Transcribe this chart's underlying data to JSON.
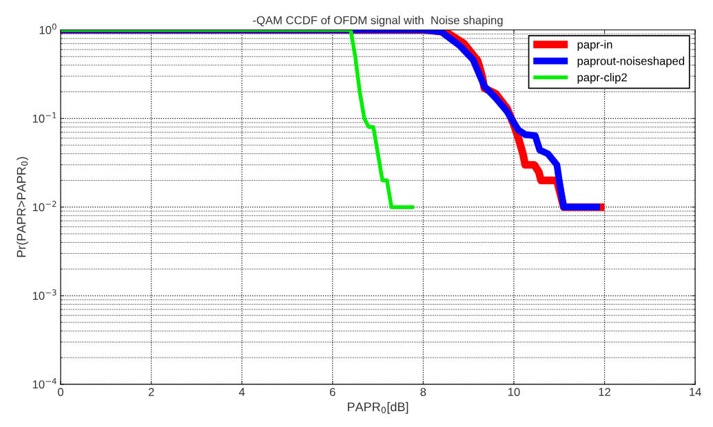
{
  "chart_data": {
    "type": "line",
    "title": "-QAM CCDF of OFDM signal with  Noise shaping",
    "xlabel": "PAPR$_{0}$[dB]",
    "ylabel": "Pr(PAPR>PAPR$_{0}$)",
    "log": "y",
    "grid": true,
    "legend": "top right",
    "marker": "none",
    "line_style": "solid",
    "xlim": [
      0,
      14
    ],
    "xticks": [
      0,
      2,
      4,
      6,
      8,
      10,
      12,
      14
    ],
    "ylim": [
      0.0001,
      1
    ],
    "yticks": [
      {
        "value": 0.0001,
        "label": "10$^{−4}$"
      },
      {
        "value": 0.001,
        "label": "10$^{−3}$"
      },
      {
        "value": 0.01,
        "label": "10$^{−2}$"
      },
      {
        "value": 0.1,
        "label": "10$^{−1}$"
      },
      {
        "value": 1,
        "label": "10$^{0}$"
      }
    ],
    "series": [
      {
        "name": "papr-in",
        "color": "#ff0000",
        "x": [
          0,
          8.0,
          8.5,
          8.9,
          9.2,
          9.3,
          9.35,
          9.6,
          9.85,
          10.0,
          10.1,
          10.2,
          10.25,
          10.45,
          10.55,
          10.6,
          10.8,
          10.95,
          11.1,
          12.0
        ],
        "values": [
          1,
          1,
          0.95,
          0.7,
          0.45,
          0.3,
          0.22,
          0.19,
          0.13,
          0.085,
          0.06,
          0.04,
          0.03,
          0.03,
          0.025,
          0.02,
          0.02,
          0.02,
          0.01,
          0.01
        ]
      },
      {
        "name": "paprout-noiseshaped",
        "color": "#0000ff",
        "x": [
          0,
          8.0,
          8.4,
          8.81,
          9.1,
          9.35,
          9.6,
          9.85,
          10.1,
          10.25,
          10.47,
          10.57,
          10.75,
          10.95,
          11.0,
          11.1,
          11.9
        ],
        "values": [
          1,
          1,
          0.95,
          0.66,
          0.46,
          0.23,
          0.17,
          0.12,
          0.074,
          0.066,
          0.064,
          0.044,
          0.04,
          0.03,
          0.02,
          0.01,
          0.01
        ]
      },
      {
        "name": "papr-clip2",
        "color": "#00ee00",
        "x": [
          0,
          6.4,
          6.5,
          6.6,
          6.7,
          6.8,
          6.9,
          7.0,
          7.1,
          7.2,
          7.3,
          7.8
        ],
        "values": [
          1,
          1,
          0.5,
          0.2,
          0.1,
          0.08,
          0.08,
          0.04,
          0.02,
          0.02,
          0.01,
          0.01
        ]
      }
    ]
  }
}
